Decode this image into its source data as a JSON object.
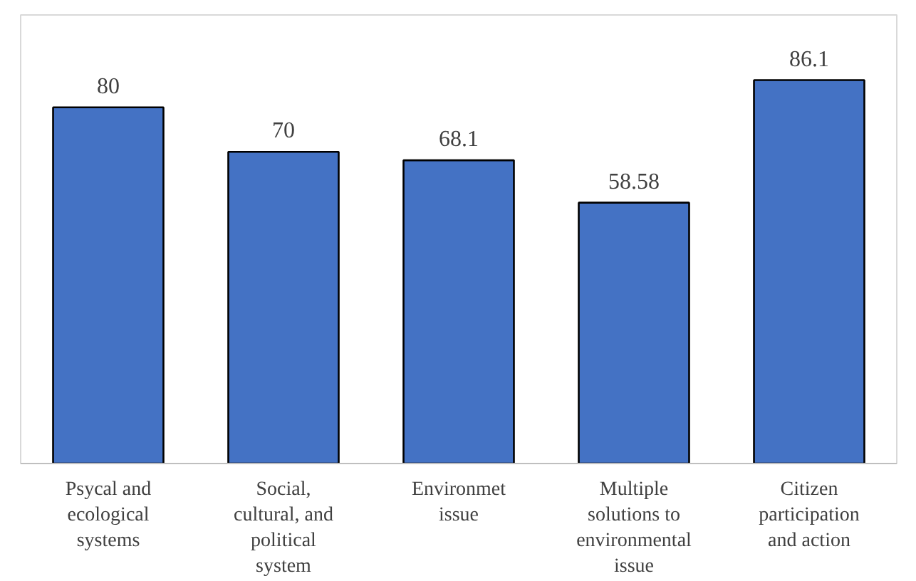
{
  "chart_data": {
    "type": "bar",
    "categories": [
      "Psycal and\necological\nsystems",
      "Social,\ncultural, and\npolitical\nsystem",
      "Environmet\nissue",
      "Multiple\nsolutions to\nenvironmental\nissue",
      "Citizen\nparticipation\nand action"
    ],
    "values": [
      80,
      70,
      68.1,
      58.58,
      86.1
    ],
    "value_labels": [
      "80",
      "70",
      "68.1",
      "58.58",
      "86.1"
    ],
    "color": "#4472c4",
    "grid": false,
    "tick_labels": "x"
  }
}
